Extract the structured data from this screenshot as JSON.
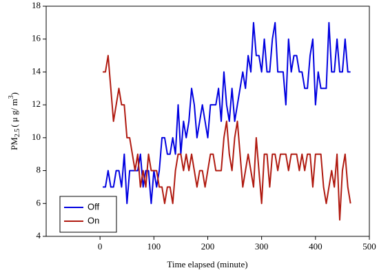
{
  "chart_data": {
    "type": "line",
    "xlabel": "Time elapsed (minute)",
    "ylabel": {
      "main": "PM",
      "sub": "2.5",
      "rest": "( μ g/ m",
      "sup": "3",
      "end": ")"
    },
    "x": [
      5,
      10,
      15,
      20,
      25,
      30,
      35,
      40,
      45,
      50,
      55,
      60,
      65,
      70,
      75,
      80,
      85,
      90,
      95,
      100,
      105,
      110,
      115,
      120,
      125,
      130,
      135,
      140,
      145,
      150,
      155,
      160,
      165,
      170,
      175,
      180,
      185,
      190,
      195,
      200,
      205,
      210,
      215,
      220,
      225,
      230,
      235,
      240,
      245,
      250,
      255,
      260,
      265,
      270,
      275,
      280,
      285,
      290,
      295,
      300,
      305,
      310,
      315,
      320,
      325,
      330,
      335,
      340,
      345,
      350,
      355,
      360,
      365,
      370,
      375,
      380,
      385,
      390,
      395,
      400,
      405,
      410,
      415,
      420,
      425,
      430,
      435,
      440,
      445,
      450,
      455,
      460,
      465
    ],
    "series": [
      {
        "name": "Off",
        "color": "#0000e0",
        "values": [
          7,
          7,
          8,
          7,
          7,
          8,
          8,
          7,
          9,
          6,
          8,
          8,
          8,
          8,
          9,
          7,
          8,
          8,
          6,
          8,
          7,
          8,
          10,
          10,
          9,
          9,
          10,
          9,
          12,
          9,
          11,
          10,
          11,
          13,
          12,
          10,
          11,
          12,
          11,
          10,
          12,
          12,
          12,
          13,
          11,
          14,
          12,
          11,
          13,
          11,
          12,
          13,
          14,
          13,
          15,
          14,
          17,
          15,
          15,
          14,
          16,
          14,
          14,
          16,
          17,
          14,
          14,
          14,
          12,
          16,
          14,
          15,
          15,
          14,
          14,
          13,
          13,
          15,
          16,
          12,
          14,
          13,
          13,
          13,
          17,
          14,
          14,
          16,
          14,
          14,
          16,
          14,
          14
        ]
      },
      {
        "name": "On",
        "color": "#b01a10",
        "values": [
          14,
          14,
          15,
          13,
          11,
          12,
          13,
          12,
          12,
          10,
          10,
          9,
          8,
          9,
          7,
          8,
          7,
          9,
          8,
          8,
          8,
          7,
          7,
          6,
          7,
          7,
          6,
          8,
          9,
          9,
          8,
          9,
          8,
          9,
          8,
          7,
          8,
          8,
          7,
          8,
          9,
          9,
          8,
          8,
          8,
          10,
          11,
          9,
          8,
          10,
          11,
          9,
          7,
          8,
          9,
          8,
          7,
          10,
          8,
          6,
          9,
          9,
          7,
          9,
          9,
          8,
          9,
          9,
          9,
          8,
          9,
          9,
          9,
          8,
          9,
          8,
          9,
          9,
          7,
          9,
          9,
          9,
          7,
          6,
          7,
          8,
          7,
          9,
          5,
          8,
          9,
          7,
          6
        ]
      }
    ],
    "xlim": [
      -100,
      500
    ],
    "xticks": [
      0,
      100,
      200,
      300,
      400,
      500
    ],
    "ylim": [
      4,
      18
    ],
    "yticks": [
      4,
      6,
      8,
      10,
      12,
      14,
      16,
      18
    ],
    "legend": "lower-left"
  }
}
